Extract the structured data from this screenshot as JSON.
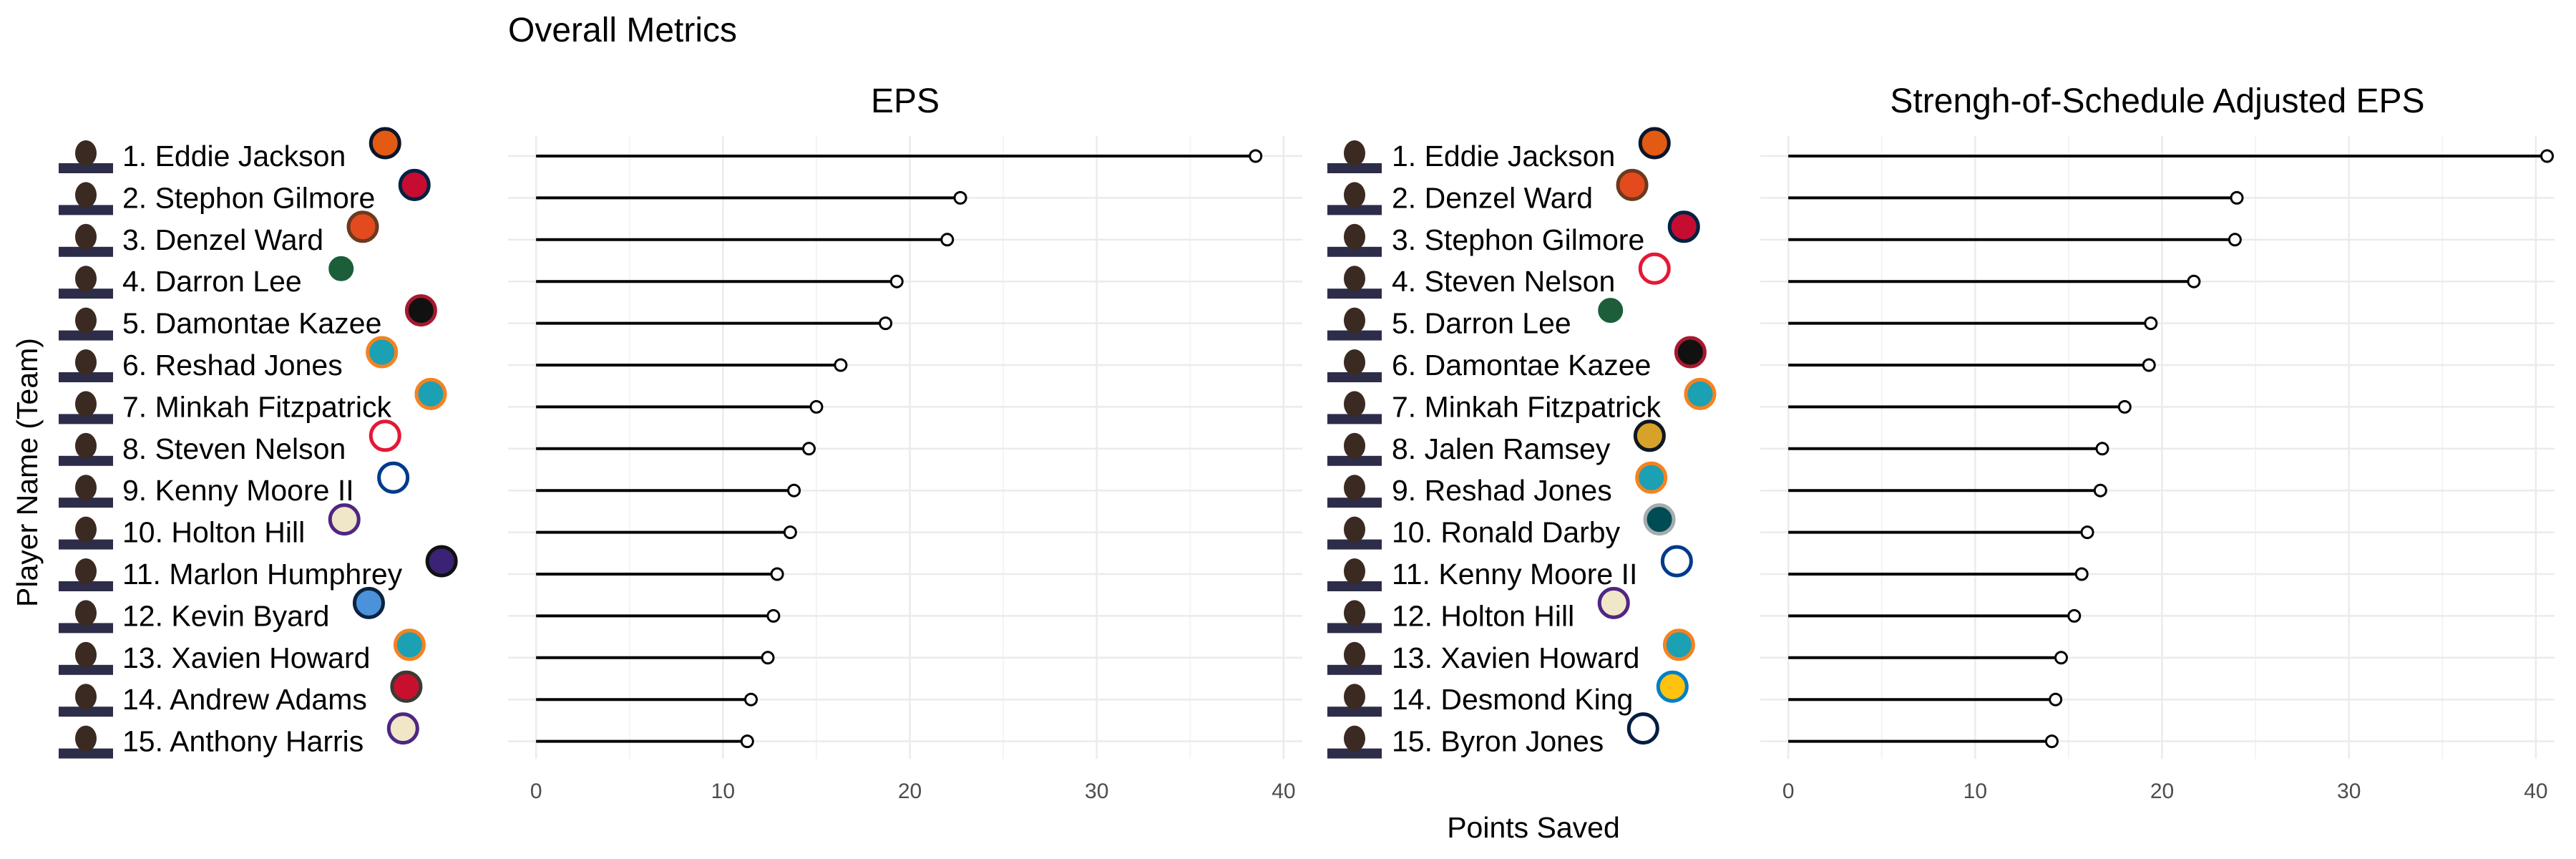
{
  "colors": {
    "grid_major": "#ebebeb",
    "grid_minor": "#f4f4f4",
    "segment": "#000000",
    "point_fill": "#ffffff",
    "tick_text": "#4d4d4d"
  },
  "chart_data": {
    "type": "lollipop",
    "title": "Overall Metrics",
    "xlabel": "Points Saved",
    "ylabel": "Player Name (Team)",
    "xlim": [
      -1.5,
      41
    ],
    "xticks": [
      0,
      10,
      20,
      30,
      40
    ],
    "grid": true,
    "panels": [
      {
        "title": "EPS",
        "players": [
          {
            "label": "1. Eddie Jackson",
            "team_icon": "bears-logo",
            "value": 38.5
          },
          {
            "label": "2. Stephon Gilmore",
            "team_icon": "patriots-logo",
            "value": 22.7
          },
          {
            "label": "3. Denzel Ward",
            "team_icon": "browns-logo",
            "value": 22.0
          },
          {
            "label": "4. Darron Lee",
            "team_icon": "jets-logo",
            "value": 19.3
          },
          {
            "label": "5. Damontae Kazee",
            "team_icon": "falcons-logo",
            "value": 18.7
          },
          {
            "label": "6. Reshad Jones",
            "team_icon": "dolphins-logo",
            "value": 16.3
          },
          {
            "label": "7. Minkah Fitzpatrick",
            "team_icon": "dolphins-logo",
            "value": 15.0
          },
          {
            "label": "8. Steven Nelson",
            "team_icon": "chiefs-logo",
            "value": 14.6
          },
          {
            "label": "9. Kenny Moore II",
            "team_icon": "colts-logo",
            "value": 13.8
          },
          {
            "label": "10. Holton Hill",
            "team_icon": "vikings-logo",
            "value": 13.6
          },
          {
            "label": "11. Marlon Humphrey",
            "team_icon": "ravens-logo",
            "value": 12.9
          },
          {
            "label": "12. Kevin Byard",
            "team_icon": "titans-logo",
            "value": 12.7
          },
          {
            "label": "13. Xavien Howard",
            "team_icon": "dolphins-logo",
            "value": 12.4
          },
          {
            "label": "14. Andrew Adams",
            "team_icon": "buccaneers-logo",
            "value": 11.5
          },
          {
            "label": "15. Anthony Harris",
            "team_icon": "vikings-logo",
            "value": 11.3
          }
        ]
      },
      {
        "title": "Strengh-of-Schedule Adjusted EPS",
        "players": [
          {
            "label": "1. Eddie Jackson",
            "team_icon": "bears-logo",
            "value": 40.6
          },
          {
            "label": "2. Denzel Ward",
            "team_icon": "browns-logo",
            "value": 24.0
          },
          {
            "label": "3. Stephon Gilmore",
            "team_icon": "patriots-logo",
            "value": 23.9
          },
          {
            "label": "4. Steven Nelson",
            "team_icon": "chiefs-logo",
            "value": 21.7
          },
          {
            "label": "5. Darron Lee",
            "team_icon": "jets-logo",
            "value": 19.4
          },
          {
            "label": "6. Damontae Kazee",
            "team_icon": "falcons-logo",
            "value": 19.3
          },
          {
            "label": "7. Minkah Fitzpatrick",
            "team_icon": "dolphins-logo",
            "value": 18.0
          },
          {
            "label": "8. Jalen Ramsey",
            "team_icon": "jaguars-logo",
            "value": 16.8
          },
          {
            "label": "9. Reshad Jones",
            "team_icon": "dolphins-logo",
            "value": 16.7
          },
          {
            "label": "10. Ronald Darby",
            "team_icon": "eagles-logo",
            "value": 16.0
          },
          {
            "label": "11. Kenny Moore II",
            "team_icon": "colts-logo",
            "value": 15.7
          },
          {
            "label": "12. Holton Hill",
            "team_icon": "vikings-logo",
            "value": 15.3
          },
          {
            "label": "13. Xavien Howard",
            "team_icon": "dolphins-logo",
            "value": 14.6
          },
          {
            "label": "14. Desmond King",
            "team_icon": "chargers-logo",
            "value": 14.3
          },
          {
            "label": "15. Byron Jones",
            "team_icon": "cowboys-logo",
            "value": 14.1
          }
        ]
      }
    ]
  }
}
